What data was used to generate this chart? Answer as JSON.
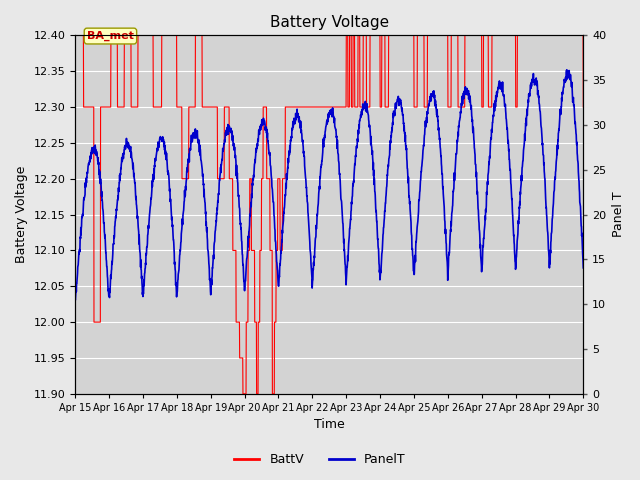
{
  "title": "Battery Voltage",
  "xlabel": "Time",
  "ylabel_left": "Battery Voltage",
  "ylabel_right": "Panel T",
  "ylim_left": [
    11.9,
    12.4
  ],
  "ylim_right": [
    0,
    40
  ],
  "fig_bg_color": "#e8e8e8",
  "plot_bg_color": "#d3d3d3",
  "legend_label_batt": "BattV",
  "legend_label_panel": "PanelT",
  "annotation_text": "BA_met",
  "x_tick_labels": [
    "Apr 15",
    "Apr 16",
    "Apr 17",
    "Apr 18",
    "Apr 19",
    "Apr 20",
    "Apr 21",
    "Apr 22",
    "Apr 23",
    "Apr 24",
    "Apr 25",
    "Apr 26",
    "Apr 27",
    "Apr 28",
    "Apr 29",
    "Apr 30"
  ],
  "batt_color": "#ff0000",
  "panel_color": "#0000cc",
  "grid_color": "#ffffff",
  "right_tick_color": "#555555"
}
